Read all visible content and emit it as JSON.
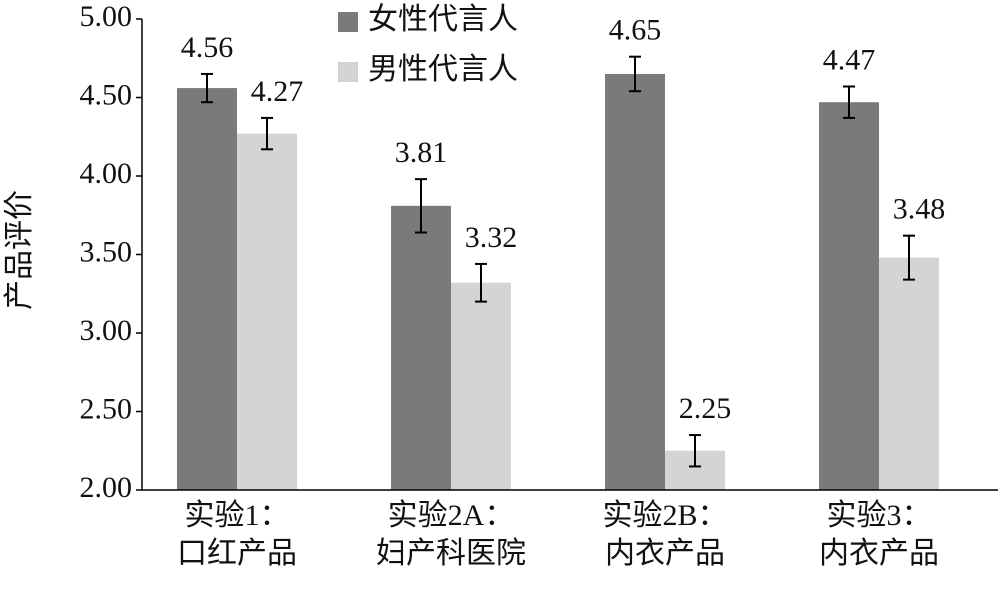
{
  "chart_data": {
    "type": "bar",
    "y_label": "产品评价",
    "categories": [
      [
        "实验1：",
        "口红产品"
      ],
      [
        "实验2A：",
        "妇产科医院"
      ],
      [
        "实验2B：",
        "内衣产品"
      ],
      [
        "实验3：",
        "内衣产品"
      ]
    ],
    "series": [
      {
        "name": "女性代言人",
        "color": "#7a7a7a",
        "values": [
          4.56,
          3.81,
          4.65,
          4.47
        ],
        "errors": [
          0.09,
          0.17,
          0.11,
          0.1
        ]
      },
      {
        "name": "男性代言人",
        "color": "#d4d4d4",
        "values": [
          4.27,
          3.32,
          2.25,
          3.48
        ],
        "errors": [
          0.1,
          0.12,
          0.1,
          0.14
        ]
      }
    ],
    "ylim": [
      2,
      5
    ],
    "yticks": [
      {
        "value": 2,
        "label": "2.00"
      },
      {
        "value": 2.5,
        "label": "2.50"
      },
      {
        "value": 3,
        "label": "3.00"
      },
      {
        "value": 3.5,
        "label": "3.50"
      },
      {
        "value": 4,
        "label": "4.00"
      },
      {
        "value": 4.5,
        "label": "4.50"
      },
      {
        "value": 5,
        "label": "5.00"
      }
    ],
    "legend": "top-center"
  }
}
